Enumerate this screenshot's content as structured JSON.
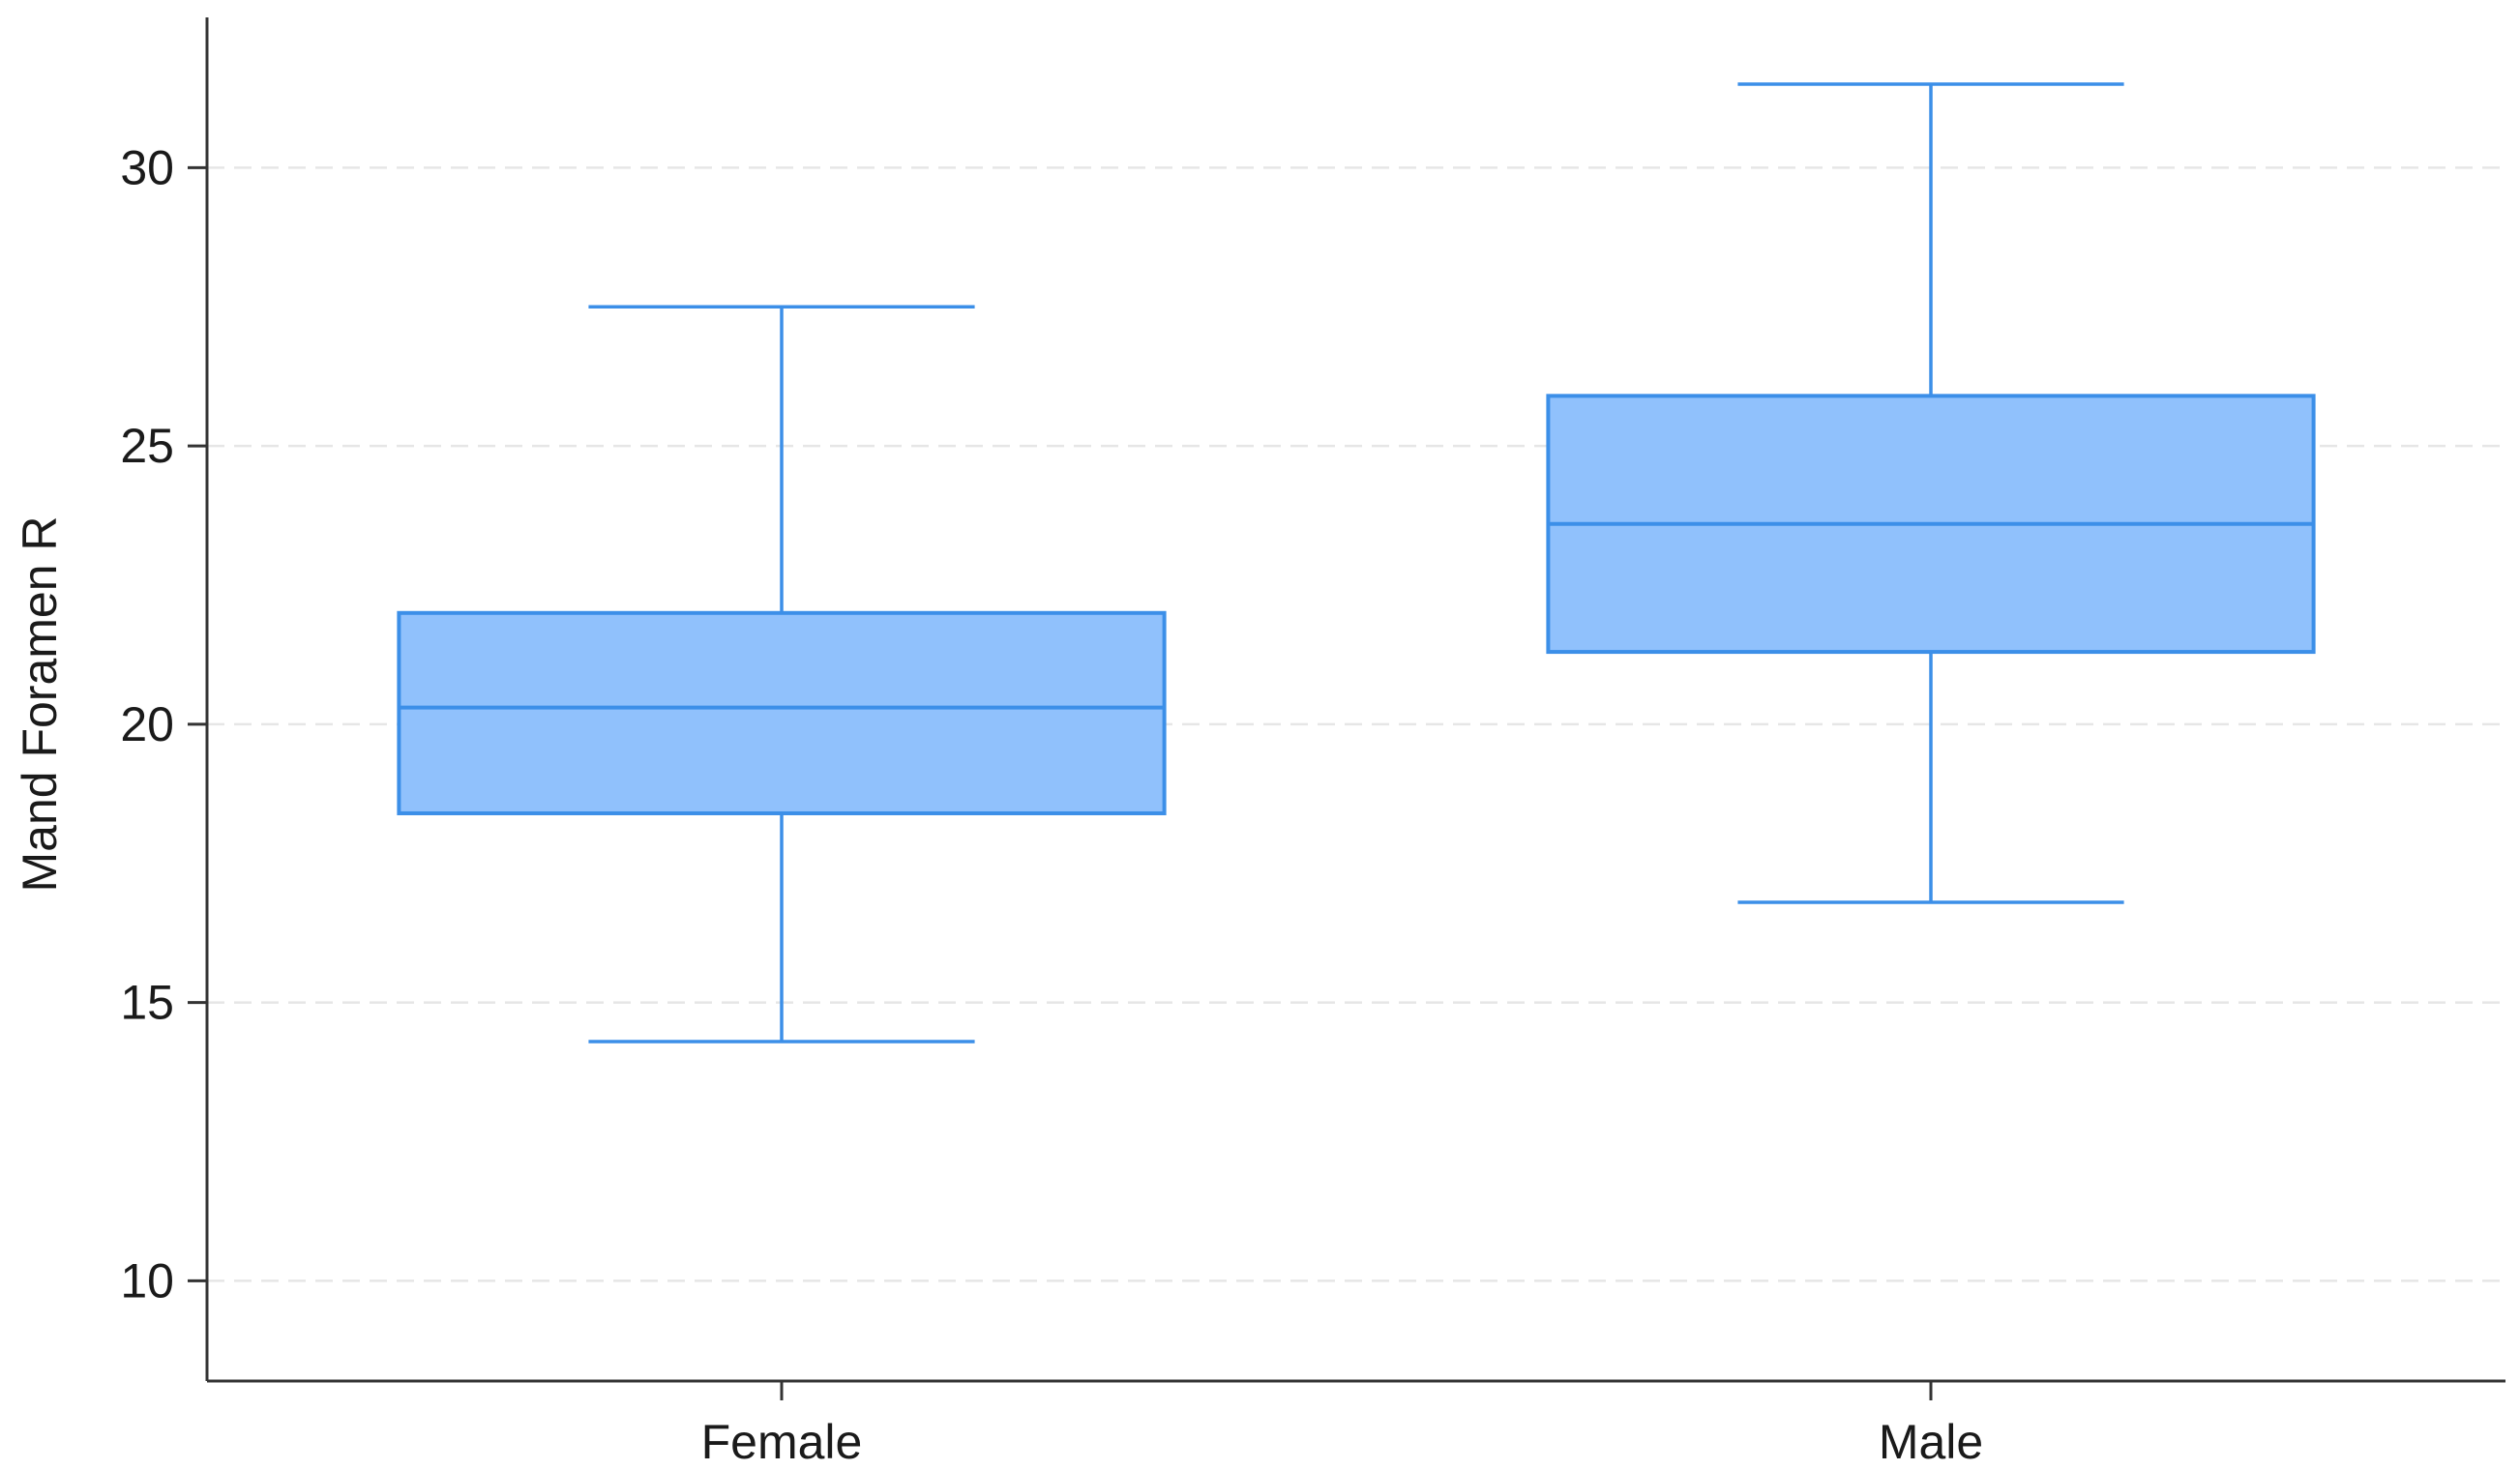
{
  "chart_data": {
    "type": "box",
    "title": "",
    "xlabel": "",
    "ylabel": "Mand Foramen R",
    "ylim": [
      8.2,
      32.7
    ],
    "yticks": [
      10,
      15,
      20,
      25,
      30
    ],
    "ytick_labels": [
      "10",
      "15",
      "20",
      "25",
      "30"
    ],
    "grid": "horizontal-dashed",
    "legend": "none",
    "categories": [
      "Female",
      "Male"
    ],
    "boxes": [
      {
        "category": "Female",
        "whisker_low": 14.3,
        "q1": 18.4,
        "median": 20.3,
        "q3": 22.0,
        "whisker_high": 27.5
      },
      {
        "category": "Male",
        "whisker_low": 16.8,
        "q1": 21.3,
        "median": 23.6,
        "q3": 25.9,
        "whisker_high": 31.5
      }
    ],
    "colors": {
      "box_fill": "#90c1fc",
      "box_stroke": "#3c8fe8",
      "axis": "#333333",
      "grid": "#e6e6e6"
    }
  }
}
